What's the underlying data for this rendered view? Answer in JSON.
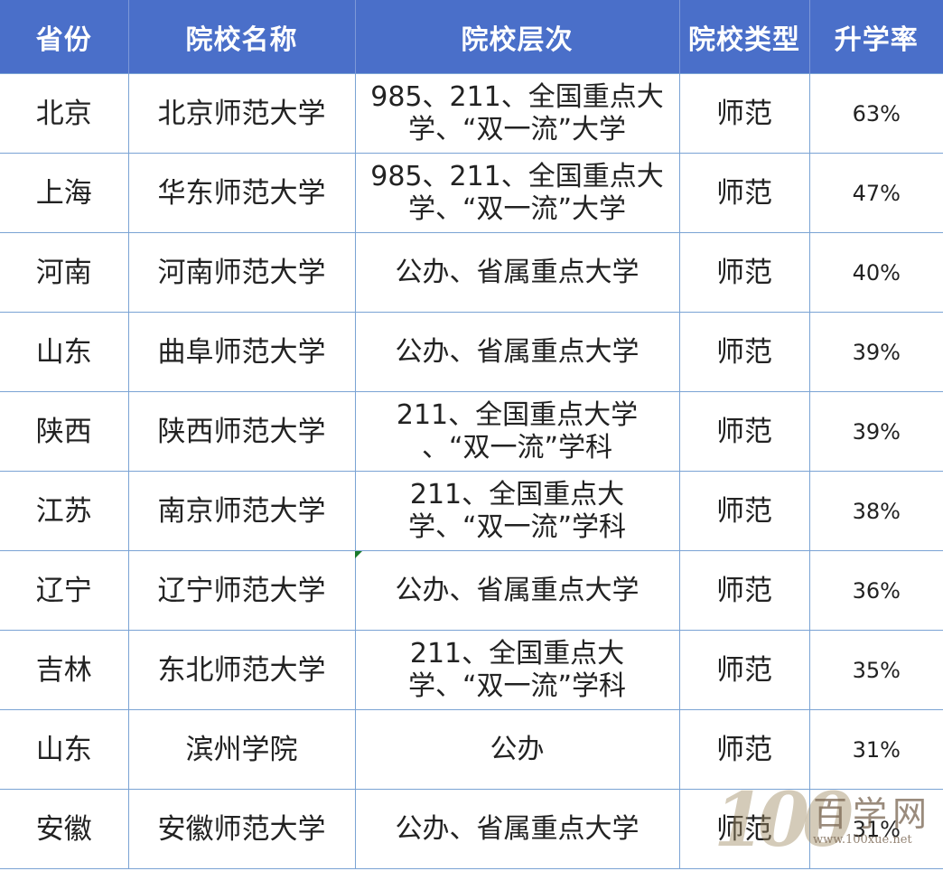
{
  "headers": [
    "省份",
    "院校名称",
    "院校层次",
    "院校类型",
    "升学率"
  ],
  "rows": [
    [
      "北京",
      "北京师范大学",
      "985、211、全国重点大学、“双一流”大学",
      "师范",
      "63%"
    ],
    [
      "上海",
      "华东师范大学",
      "985、211、全国重点大学、“双一流”大学",
      "师范",
      "47%"
    ],
    [
      "河南",
      "河南师范大学",
      "公办、省属重点大学",
      "师范",
      "40%"
    ],
    [
      "山东",
      "曲阜师范大学",
      "公办、省属重点大学",
      "师范",
      "39%"
    ],
    [
      "陕西",
      "陕西师范大学",
      "211、全国重点大学 、“双一流”学科",
      "师范",
      "39%"
    ],
    [
      "江苏",
      "南京师范大学",
      "211、全国重点大学、“双一流”学科",
      "师范",
      "38%"
    ],
    [
      "辽宁",
      "辽宁师范大学",
      "公办、省属重点大学",
      "师范",
      "36%"
    ],
    [
      "吉林",
      "东北师范大学",
      "211、全国重点大学、“双一流”学科",
      "师范",
      "35%"
    ],
    [
      "山东",
      "滨州学院",
      "公办",
      "师范",
      "31%"
    ],
    [
      "安徽",
      "安徽师范大学",
      "公办、省属重点大学",
      "师范",
      "31%"
    ]
  ],
  "watermark": {
    "logo": "100",
    "name": "百学网",
    "url": "www.100xue.net"
  },
  "colors": {
    "header_bg": "#4a6fc9",
    "border": "#7aa3d4"
  }
}
